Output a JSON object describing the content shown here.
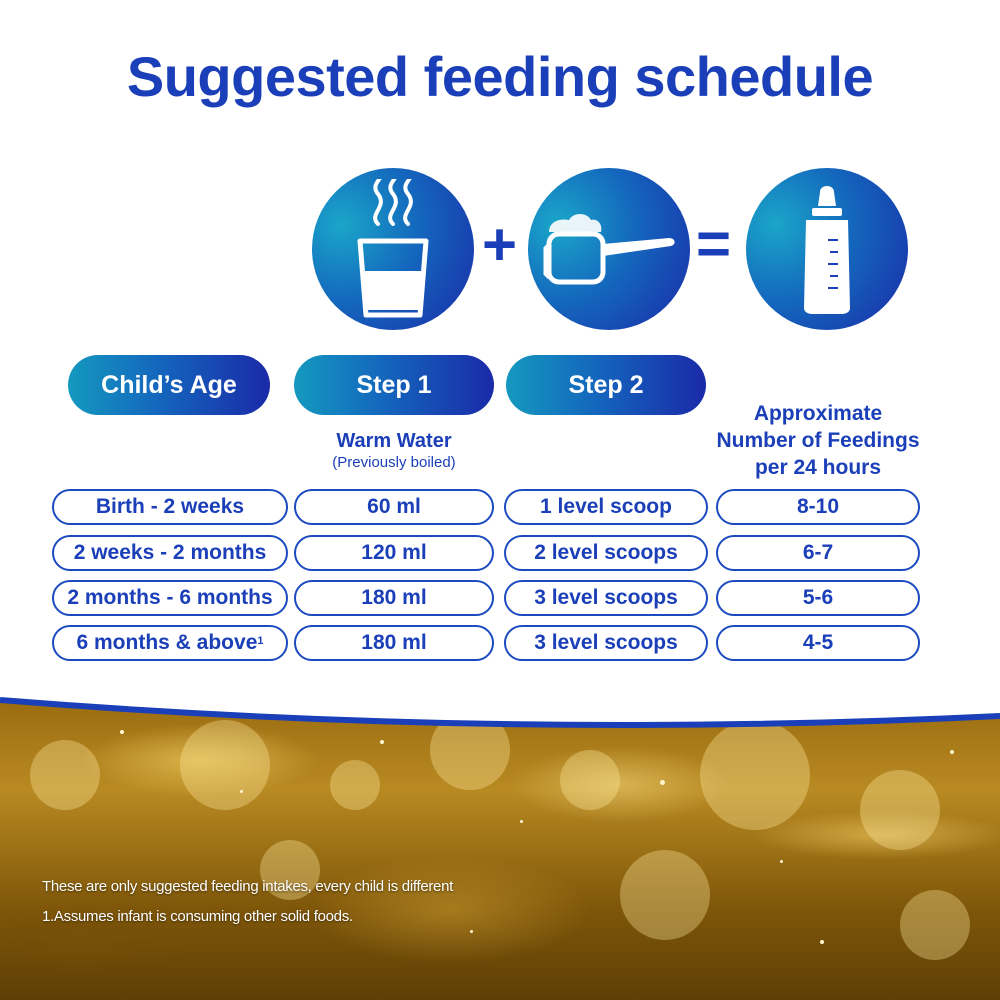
{
  "title": "Suggested feeding schedule",
  "icons": {
    "step1": "warm-water-glass-icon",
    "plus": "+",
    "step2": "formula-scoop-icon",
    "equals": "=",
    "result": "baby-bottle-icon"
  },
  "headers": {
    "age": "Child’s Age",
    "step1": "Step 1",
    "step2": "Step 2",
    "step1_sub": "Warm Water",
    "step1_sub_note": "(Previously boiled)",
    "feedings_line1": "Approximate",
    "feedings_line2": "Number of Feedings",
    "feedings_line3": "per 24 hours"
  },
  "rows": [
    {
      "age": "Birth - 2 weeks",
      "water": "60 ml",
      "scoops": "1 level scoop",
      "feedings": "8-10"
    },
    {
      "age": "2 weeks - 2 months",
      "water": "120 ml",
      "scoops": "2 level scoops",
      "feedings": "6-7"
    },
    {
      "age": "2 months - 6 months",
      "water": "180 ml",
      "scoops": "3 level scoops",
      "feedings": "5-6"
    },
    {
      "age": "6 months & above",
      "age_sup": "1",
      "water": "180 ml",
      "scoops": "3 level scoops",
      "feedings": "4-5"
    }
  ],
  "footnotes": {
    "note1": "These are only suggested feeding intakes, every child is different",
    "note2": "1.Assumes infant is consuming other solid foods."
  },
  "colors": {
    "brand_blue": "#1a3fb8",
    "gradient_start": "#1499bf",
    "gradient_end": "#1a2aa8",
    "gold": "#b98a22"
  }
}
